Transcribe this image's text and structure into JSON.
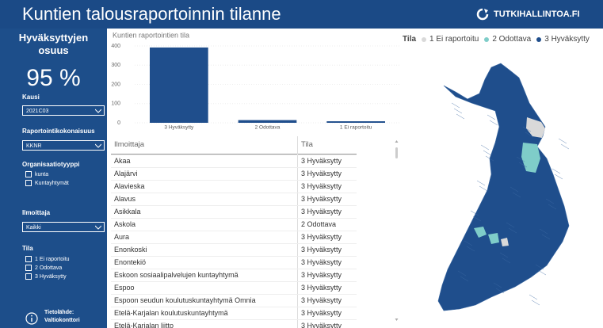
{
  "header": {
    "title": "Kuntien talousraportoinnin tilanne",
    "logo_text": "TUTKIHALLINTOA.FI"
  },
  "sidebar": {
    "kpi_title": "Hyväksyttyjen osuus",
    "kpi_value": "95 %",
    "kausi": {
      "label": "Kausi",
      "value": "2021C03"
    },
    "raportointikokonaisuus": {
      "label": "Raportointikokonaisuus",
      "value": "KKNR"
    },
    "organisaatiotyyppi": {
      "label": "Organisaatiotyyppi",
      "options": [
        "kunta",
        "Kuntayhtymät"
      ]
    },
    "ilmoittaja": {
      "label": "Ilmoittaja",
      "value": "Kaikki"
    },
    "tila": {
      "label": "Tila",
      "options": [
        "1 Ei raportoitu",
        "2 Odottava",
        "3 Hyväksytty"
      ]
    },
    "source": {
      "label": "Tietolähde:",
      "value": "Valtiokonttori"
    }
  },
  "bar_chart": {
    "type": "bar",
    "title": "Kuntien raportointien tila",
    "categories": [
      "3 Hyväksytty",
      "2 Odottava",
      "1 Ei raportoitu"
    ],
    "values": [
      392,
      14,
      8
    ],
    "color": "#1f4e8c",
    "ylim": [
      0,
      400
    ],
    "yticks": [
      0,
      100,
      200,
      300,
      400
    ]
  },
  "table": {
    "columns": [
      "Ilmoittaja",
      "Tila"
    ],
    "rows": [
      [
        "Akaa",
        "3 Hyväksytty"
      ],
      [
        "Alajärvi",
        "3 Hyväksytty"
      ],
      [
        "Alavieska",
        "3 Hyväksytty"
      ],
      [
        "Alavus",
        "3 Hyväksytty"
      ],
      [
        "Asikkala",
        "3 Hyväksytty"
      ],
      [
        "Askola",
        "2 Odottava"
      ],
      [
        "Aura",
        "3 Hyväksytty"
      ],
      [
        "Enonkoski",
        "3 Hyväksytty"
      ],
      [
        "Enontekiö",
        "3 Hyväksytty"
      ],
      [
        "Eskoon sosiaalipalvelujen kuntayhtymä",
        "3 Hyväksytty"
      ],
      [
        "Espoo",
        "3 Hyväksytty"
      ],
      [
        "Espoon seudun koulutuskuntayhtymä Omnia",
        "3 Hyväksytty"
      ],
      [
        "Etelä-Karjalan koulutuskuntayhtymä",
        "3 Hyväksytty"
      ],
      [
        "Etelä-Karjalan liitto",
        "3 Hyväksytty"
      ]
    ]
  },
  "map_legend": {
    "title": "Tila",
    "items": [
      {
        "label": "1 Ei raportoitu",
        "color": "#d9d9d9"
      },
      {
        "label": "2 Odottava",
        "color": "#7fcdc9"
      },
      {
        "label": "3 Hyväksytty",
        "color": "#1f4e8c"
      }
    ]
  }
}
